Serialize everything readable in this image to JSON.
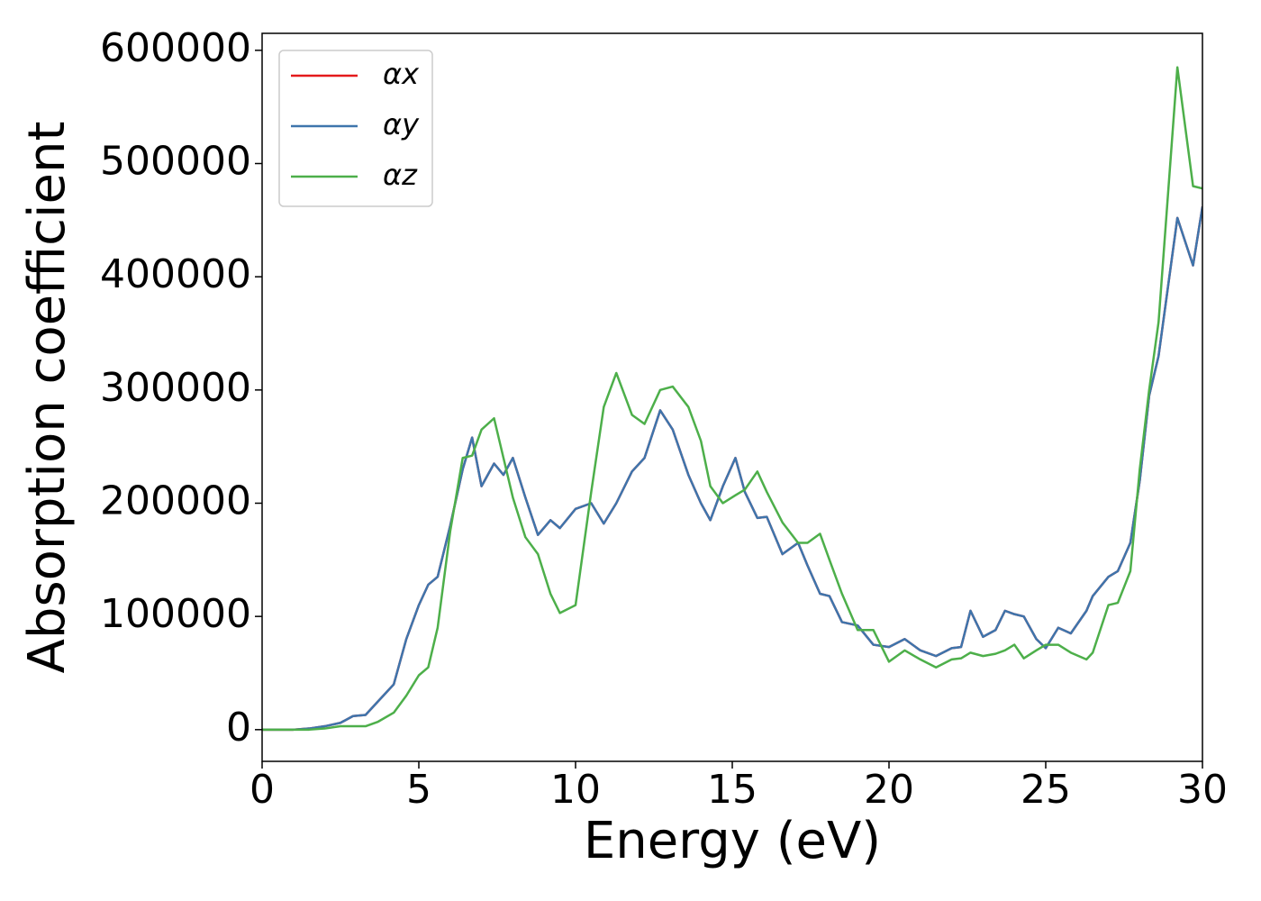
{
  "chart_data": {
    "type": "line",
    "xlabel": "Energy (eV)",
    "ylabel": "Absorption coefficient",
    "x": [
      0,
      1,
      1.5,
      2,
      2.5,
      2.9,
      3.3,
      3.7,
      4.2,
      4.6,
      5,
      5.3,
      5.6,
      6,
      6.4,
      6.7,
      7.0,
      7.4,
      7.7,
      8.0,
      8.4,
      8.8,
      9.2,
      9.5,
      10,
      10.5,
      10.9,
      11.3,
      11.8,
      12.2,
      12.7,
      13.1,
      13.6,
      14.0,
      14.3,
      14.7,
      15.1,
      15.4,
      15.8,
      16.1,
      16.6,
      17.1,
      17.4,
      17.8,
      18.1,
      18.5,
      19,
      19.5,
      20,
      20.5,
      21,
      21.5,
      22,
      22.3,
      22.6,
      23,
      23.4,
      23.7,
      24,
      24.3,
      24.7,
      25,
      25.4,
      25.8,
      26.3,
      26.5,
      27,
      27.3,
      27.7,
      28,
      28.3,
      28.6,
      29.2,
      29.7,
      30
    ],
    "series": [
      {
        "name": "αx",
        "color": "#e41a1c",
        "values": [
          0,
          0,
          1000,
          3000,
          6000,
          12000,
          13000,
          25000,
          40000,
          80000,
          110000,
          128000,
          135000,
          180000,
          230000,
          258000,
          215000,
          235000,
          225000,
          240000,
          205000,
          172000,
          185000,
          178000,
          195000,
          200000,
          182000,
          200000,
          228000,
          240000,
          282000,
          265000,
          225000,
          200000,
          185000,
          215000,
          240000,
          210000,
          187000,
          188000,
          155000,
          165000,
          145000,
          120000,
          118000,
          95000,
          92000,
          75000,
          73000,
          80000,
          70000,
          65000,
          72000,
          73000,
          105000,
          82000,
          88000,
          105000,
          102000,
          100000,
          80000,
          72000,
          90000,
          85000,
          105000,
          118000,
          135000,
          140000,
          165000,
          220000,
          295000,
          330000,
          452000,
          410000,
          462000
        ]
      },
      {
        "name": "αy",
        "color": "#3e75ac",
        "values": [
          0,
          0,
          1000,
          3000,
          6000,
          12000,
          13000,
          25000,
          40000,
          80000,
          110000,
          128000,
          135000,
          180000,
          230000,
          258000,
          215000,
          235000,
          225000,
          240000,
          205000,
          172000,
          185000,
          178000,
          195000,
          200000,
          182000,
          200000,
          228000,
          240000,
          282000,
          265000,
          225000,
          200000,
          185000,
          215000,
          240000,
          210000,
          187000,
          188000,
          155000,
          165000,
          145000,
          120000,
          118000,
          95000,
          92000,
          75000,
          73000,
          80000,
          70000,
          65000,
          72000,
          73000,
          105000,
          82000,
          88000,
          105000,
          102000,
          100000,
          80000,
          72000,
          90000,
          85000,
          105000,
          118000,
          135000,
          140000,
          165000,
          220000,
          295000,
          330000,
          452000,
          410000,
          462000
        ]
      },
      {
        "name": "αz",
        "color": "#4daf4a",
        "values": [
          0,
          0,
          0,
          1000,
          3000,
          3000,
          3000,
          7000,
          15000,
          30000,
          48000,
          55000,
          90000,
          175000,
          240000,
          242000,
          265000,
          275000,
          240000,
          205000,
          170000,
          155000,
          120000,
          103000,
          110000,
          210000,
          285000,
          315000,
          278000,
          270000,
          300000,
          303000,
          285000,
          255000,
          215000,
          200000,
          207000,
          212000,
          228000,
          210000,
          183000,
          165000,
          165000,
          173000,
          150000,
          120000,
          88000,
          88000,
          60000,
          70000,
          62000,
          55000,
          62000,
          63000,
          68000,
          65000,
          67000,
          70000,
          75000,
          63000,
          70000,
          75000,
          75000,
          68000,
          62000,
          68000,
          110000,
          112000,
          140000,
          230000,
          300000,
          360000,
          585000,
          480000,
          478000
        ]
      }
    ],
    "xlim": [
      0,
      30
    ],
    "ylim": [
      -28000,
      615000
    ],
    "xticks": [
      0,
      5,
      10,
      15,
      20,
      25,
      30
    ],
    "yticks": [
      0,
      100000,
      200000,
      300000,
      400000,
      500000,
      600000
    ],
    "legend": "upper left",
    "grid": false
  }
}
